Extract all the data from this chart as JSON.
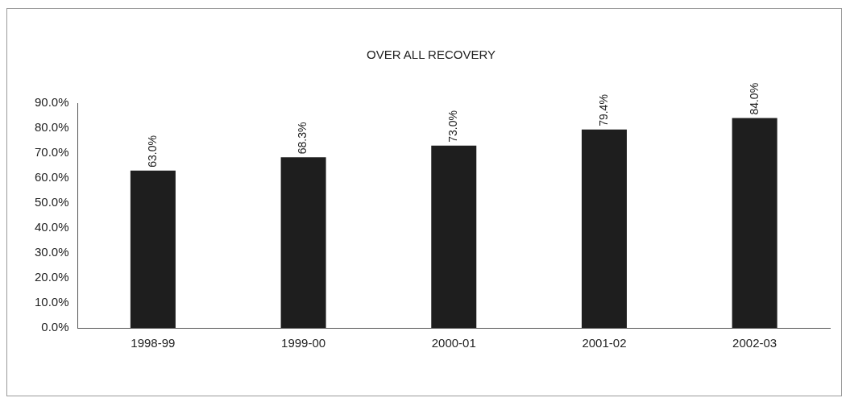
{
  "chart_data": {
    "type": "bar",
    "title": "OVER ALL RECOVERY",
    "categories": [
      "1998-99",
      "1999-00",
      "2000-01",
      "2001-02",
      "2002-03"
    ],
    "values": [
      63.0,
      68.3,
      73.0,
      79.4,
      84.0
    ],
    "value_labels": [
      "63.0%",
      "68.3%",
      "73.0%",
      "79.4%",
      "84.0%"
    ],
    "color": "#1e1e1e",
    "ylim": [
      0,
      90
    ],
    "yticks": [
      {
        "value": 0,
        "label": "0.0%"
      },
      {
        "value": 10,
        "label": "10.0%"
      },
      {
        "value": 20,
        "label": "20.0%"
      },
      {
        "value": 30,
        "label": "30.0%"
      },
      {
        "value": 40,
        "label": "40.0%"
      },
      {
        "value": 50,
        "label": "50.0%"
      },
      {
        "value": 60,
        "label": "60.0%"
      },
      {
        "value": 70,
        "label": "70.0%"
      },
      {
        "value": 80,
        "label": "80.0%"
      },
      {
        "value": 90,
        "label": "90.0%"
      }
    ],
    "grid": false,
    "legend": false
  }
}
